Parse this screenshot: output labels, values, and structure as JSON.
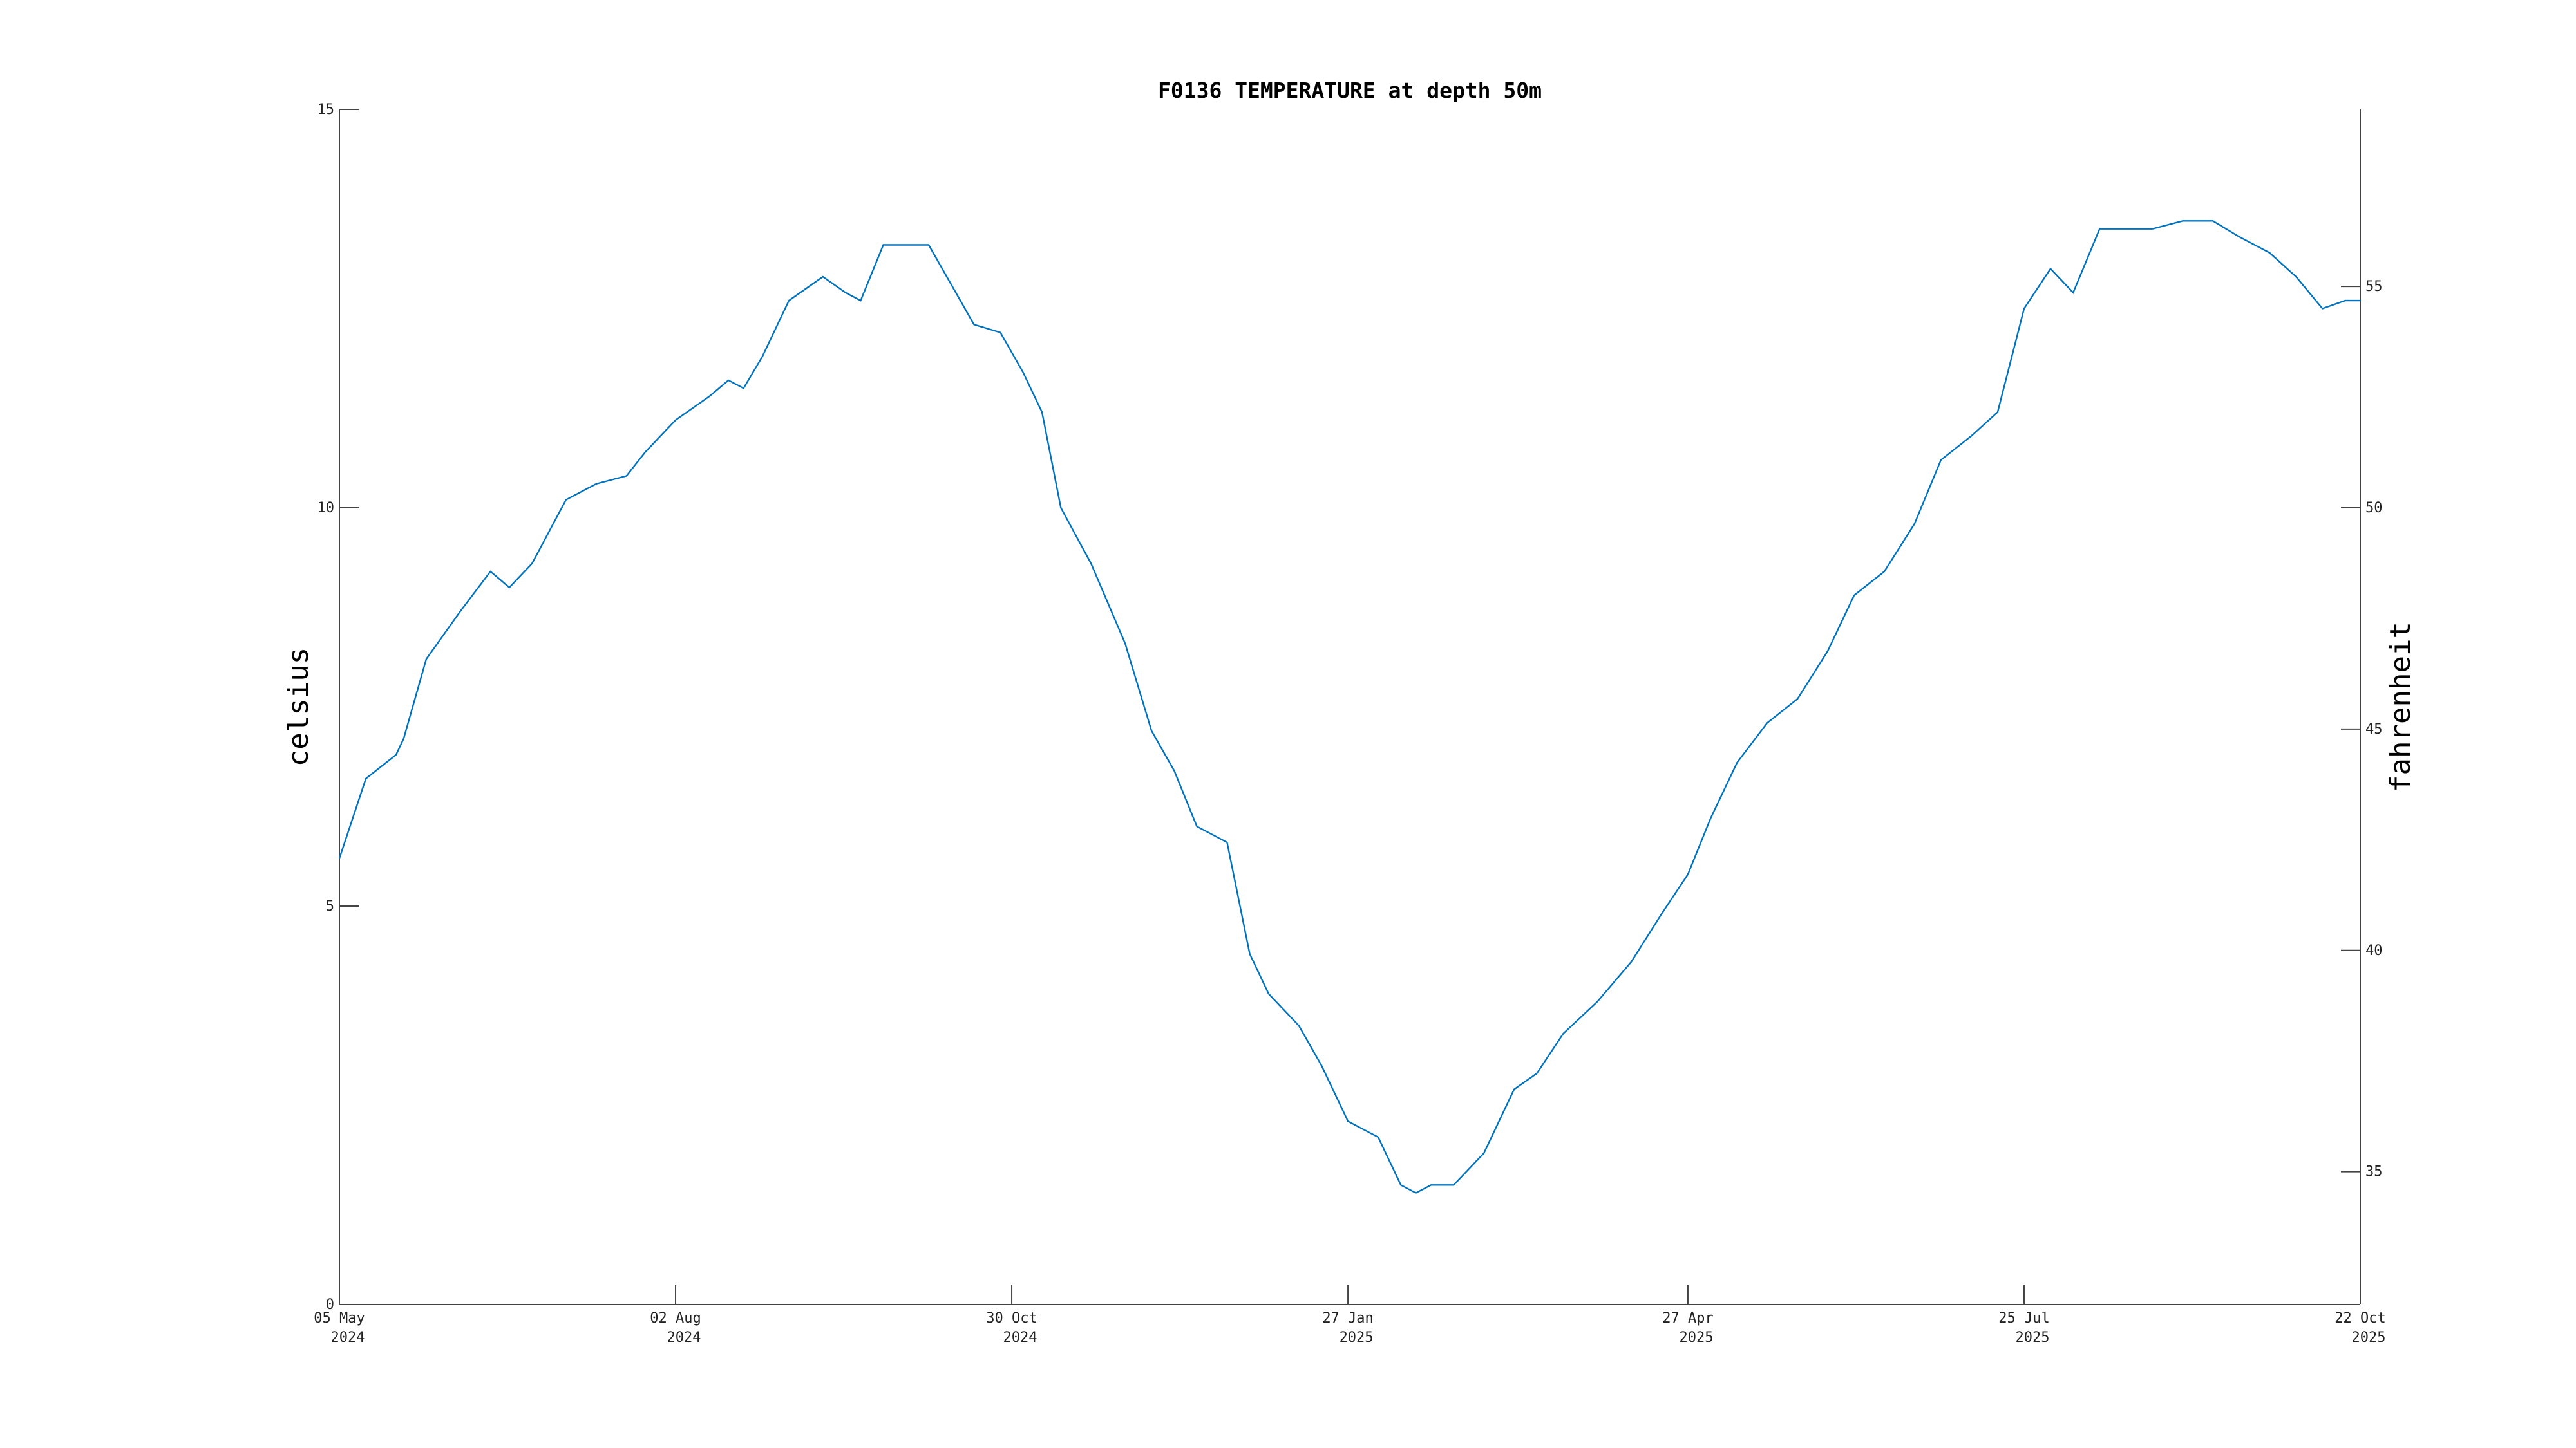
{
  "chart_data": {
    "type": "line",
    "title": "F0136 TEMPERATURE at depth 50m",
    "ylabel": "celsius",
    "ylabel_right": "fahrenheit",
    "xlabel": "",
    "grid": false,
    "ylim": [
      0,
      15
    ],
    "yticks": [
      "0",
      "5",
      "10",
      "15"
    ],
    "ylim_right": [
      32,
      59
    ],
    "yticks_right": [
      "35",
      "40",
      "45",
      "50",
      "55"
    ],
    "xlim": [
      "2024-05-05",
      "2025-10-22"
    ],
    "xticks": [
      {
        "date": "2024-05-05",
        "label": "05 May",
        "year": "2024"
      },
      {
        "date": "2024-08-02",
        "label": "02 Aug",
        "year": "2024"
      },
      {
        "date": "2024-10-30",
        "label": "30 Oct",
        "year": "2024"
      },
      {
        "date": "2025-01-27",
        "label": "27 Jan",
        "year": "2025"
      },
      {
        "date": "2025-04-27",
        "label": "27 Apr",
        "year": "2025"
      },
      {
        "date": "2025-07-25",
        "label": "25 Jul",
        "year": "2025"
      },
      {
        "date": "2025-10-22",
        "label": "22 Oct",
        "year": "2025"
      }
    ],
    "series": [
      {
        "color": "#0072bd",
        "x": [
          "2024-05-05",
          "2024-05-12",
          "2024-05-20",
          "2024-05-22",
          "2024-05-28",
          "2024-06-06",
          "2024-06-14",
          "2024-06-19",
          "2024-06-25",
          "2024-07-04",
          "2024-07-12",
          "2024-07-20",
          "2024-07-25",
          "2024-08-02",
          "2024-08-11",
          "2024-08-16",
          "2024-08-20",
          "2024-08-25",
          "2024-09-01",
          "2024-09-10",
          "2024-09-16",
          "2024-09-20",
          "2024-09-26",
          "2024-10-03",
          "2024-10-08",
          "2024-10-14",
          "2024-10-20",
          "2024-10-27",
          "2024-11-02",
          "2024-11-07",
          "2024-11-12",
          "2024-11-20",
          "2024-11-29",
          "2024-12-06",
          "2024-12-12",
          "2024-12-18",
          "2024-12-26",
          "2025-01-01",
          "2025-01-06",
          "2025-01-14",
          "2025-01-20",
          "2025-01-27",
          "2025-02-04",
          "2025-02-10",
          "2025-02-14",
          "2025-02-18",
          "2025-02-24",
          "2025-03-04",
          "2025-03-12",
          "2025-03-18",
          "2025-03-25",
          "2025-04-03",
          "2025-04-12",
          "2025-04-20",
          "2025-04-27",
          "2025-05-03",
          "2025-05-10",
          "2025-05-18",
          "2025-05-26",
          "2025-06-03",
          "2025-06-10",
          "2025-06-18",
          "2025-06-26",
          "2025-07-03",
          "2025-07-11",
          "2025-07-18",
          "2025-07-25",
          "2025-08-01",
          "2025-08-07",
          "2025-08-14",
          "2025-08-20",
          "2025-08-28",
          "2025-09-05",
          "2025-09-13",
          "2025-09-20",
          "2025-09-28",
          "2025-10-05",
          "2025-10-12",
          "2025-10-18",
          "2025-10-22"
        ],
        "y": [
          5.6,
          6.6,
          6.9,
          7.1,
          8.1,
          8.7,
          9.2,
          9.0,
          9.3,
          10.1,
          10.3,
          10.4,
          10.7,
          11.1,
          11.4,
          11.6,
          11.5,
          11.9,
          12.6,
          12.9,
          12.7,
          12.6,
          13.3,
          13.3,
          13.3,
          12.8,
          12.3,
          12.2,
          11.7,
          11.2,
          10.0,
          9.3,
          8.3,
          7.2,
          6.7,
          6.0,
          5.8,
          4.4,
          3.9,
          3.5,
          3.0,
          2.3,
          2.1,
          1.5,
          1.4,
          1.5,
          1.5,
          1.9,
          2.7,
          2.9,
          3.4,
          3.8,
          4.3,
          4.9,
          5.4,
          6.1,
          6.8,
          7.3,
          7.6,
          8.2,
          8.9,
          9.2,
          9.8,
          10.6,
          10.9,
          11.2,
          12.5,
          13.0,
          12.7,
          13.5,
          13.5,
          13.5,
          13.6,
          13.6,
          13.4,
          13.2,
          12.9,
          12.5,
          12.6,
          12.6
        ]
      }
    ]
  }
}
